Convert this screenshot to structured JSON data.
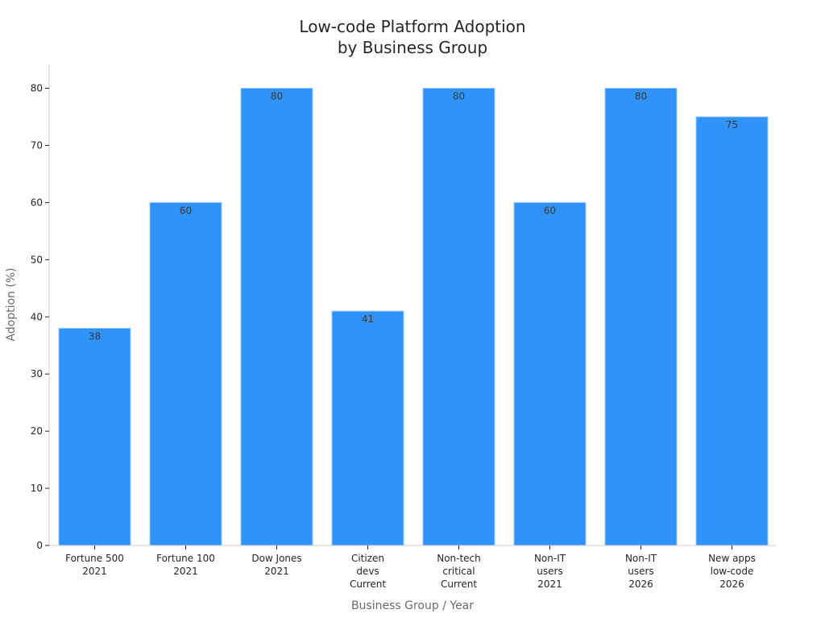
{
  "chart_data": {
    "type": "bar",
    "title": [
      "Low-code Platform Adoption",
      "by Business Group"
    ],
    "xlabel": "Business Group / Year",
    "ylabel": "Adoption (%)",
    "categories": [
      [
        "Fortune 500",
        "2021"
      ],
      [
        "Fortune 100",
        "2021"
      ],
      [
        "Dow Jones",
        "2021"
      ],
      [
        "Citizen",
        "devs",
        "Current"
      ],
      [
        "Non-tech",
        "critical",
        "Current"
      ],
      [
        "Non-IT",
        "users",
        "2021"
      ],
      [
        "Non-IT",
        "users",
        "2026"
      ],
      [
        "New apps",
        "low-code",
        "2026"
      ]
    ],
    "values": [
      38,
      60,
      80,
      41,
      80,
      60,
      80,
      75
    ],
    "data_labels": [
      "38",
      "60",
      "80",
      "41",
      "80",
      "60",
      "80",
      "75"
    ],
    "ylim": [
      0,
      84
    ],
    "yticks": [
      0,
      10,
      20,
      30,
      40,
      50,
      60,
      70,
      80
    ],
    "grid": false,
    "legend": "none",
    "colors": {
      "bar": "#2f93f9",
      "bar_edge": "#9ccaf8"
    }
  }
}
